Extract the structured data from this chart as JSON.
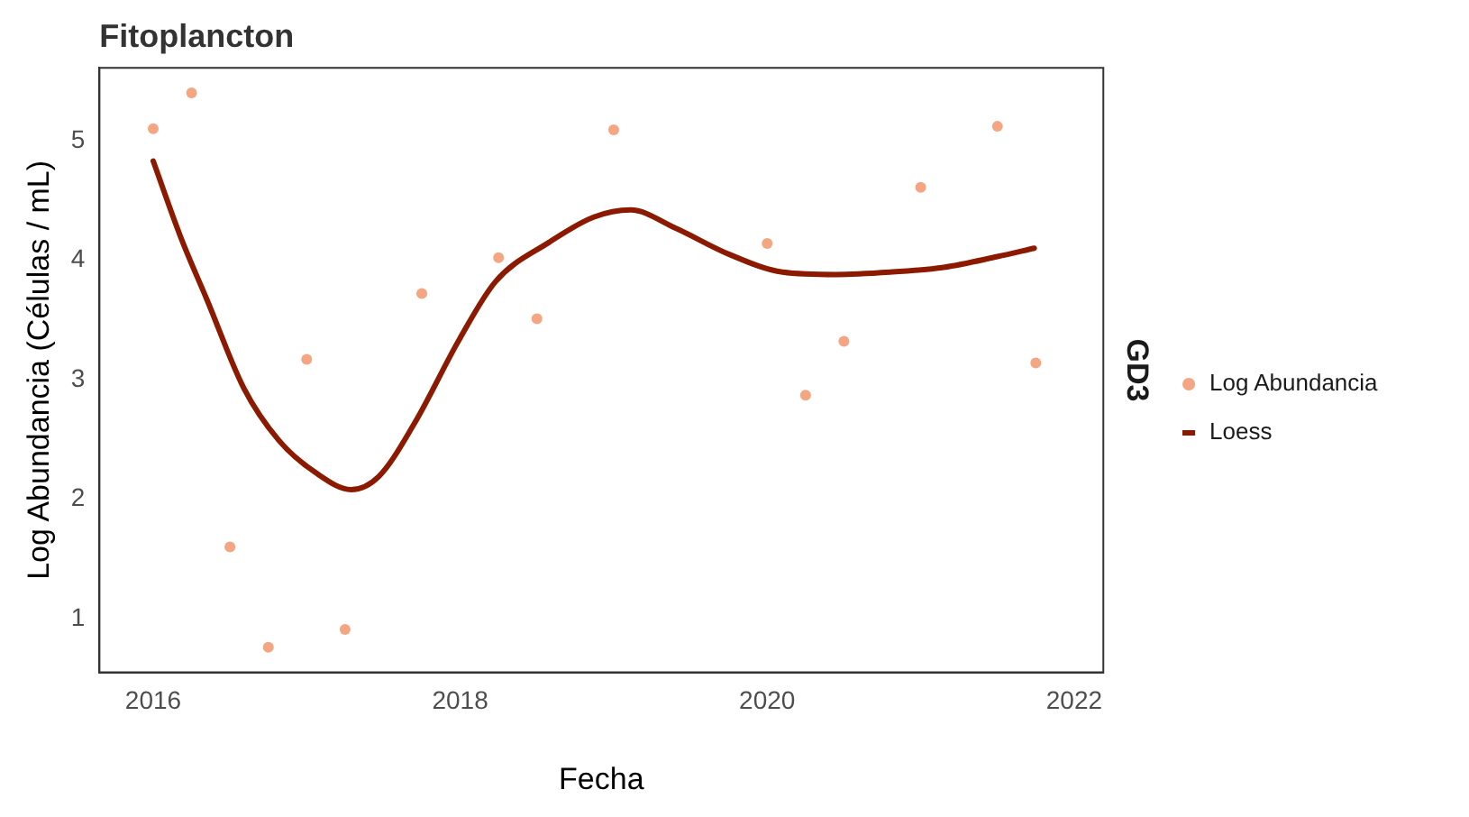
{
  "chart_data": {
    "type": "scatter",
    "title": "Fitoplancton",
    "xlabel": "Fecha",
    "ylabel": "Log Abundancia (Células / mL)",
    "annotations": [
      "GD3"
    ],
    "series": [
      {
        "name": "Log Abundancia",
        "color": "#f4a582",
        "marker": "circle",
        "x": [
          2016.0,
          2016.25,
          2016.5,
          2016.75,
          2017.0,
          2017.25,
          2017.75,
          2018.25,
          2018.5,
          2019.0,
          2020.0,
          2020.25,
          2020.5,
          2021.0,
          2021.5,
          2021.75
        ],
        "values": [
          5.1,
          5.4,
          1.6,
          0.76,
          3.17,
          0.91,
          3.72,
          4.02,
          3.51,
          5.09,
          4.14,
          2.87,
          3.32,
          4.61,
          5.12,
          3.14
        ]
      },
      {
        "name": "Loess",
        "type": "line",
        "color": "#8b1a00",
        "marker": "none",
        "line_style": "solid",
        "x": [
          2016.0,
          2016.18,
          2016.35,
          2016.59,
          2016.82,
          2017.06,
          2017.29,
          2017.47,
          2017.7,
          2018.0,
          2018.23,
          2018.58,
          2018.87,
          2019.11,
          2019.4,
          2019.75,
          2020.1,
          2020.45,
          2020.8,
          2021.15,
          2021.5,
          2021.74
        ],
        "values": [
          4.83,
          4.19,
          3.67,
          2.93,
          2.49,
          2.22,
          2.08,
          2.19,
          2.63,
          3.35,
          3.82,
          4.15,
          4.36,
          4.42,
          4.27,
          4.05,
          3.9,
          3.88,
          3.9,
          3.94,
          4.03,
          4.1
        ]
      }
    ],
    "xlim": [
      2015.65,
      2022.19
    ],
    "xticks": [
      2016,
      2018,
      2020,
      2022
    ],
    "ylim": [
      0.55,
      5.61
    ],
    "yticks": [
      1,
      2,
      3,
      4,
      5
    ],
    "grid": false,
    "legend": "right"
  }
}
